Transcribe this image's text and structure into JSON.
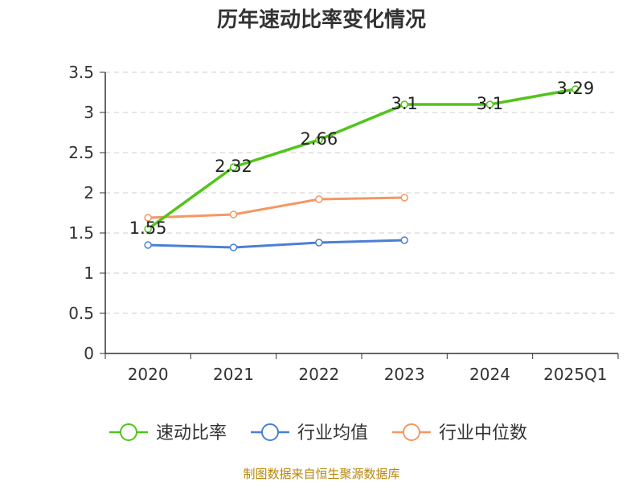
{
  "chart_data": {
    "type": "line",
    "title": "历年速动比率变化情况",
    "categories": [
      "2020",
      "2021",
      "2022",
      "2023",
      "2024",
      "2025Q1"
    ],
    "ylim": [
      0,
      3.5
    ],
    "yticks": [
      "0",
      "0.5",
      "1",
      "1.5",
      "2",
      "2.5",
      "3",
      "3.5"
    ],
    "grid": true,
    "legend_position": "bottom",
    "series": [
      {
        "name": "速动比率",
        "color": "#52c41a",
        "values": [
          1.55,
          2.32,
          2.66,
          3.1,
          3.1,
          3.29
        ],
        "labels": [
          "1.55",
          "2.32",
          "2.66",
          "3.1",
          "3.1",
          "3.29"
        ]
      },
      {
        "name": "行业均值",
        "color": "#4a7fd6",
        "values": [
          1.35,
          1.32,
          1.38,
          1.41,
          null,
          null
        ]
      },
      {
        "name": "行业中位数",
        "color": "#f59762",
        "values": [
          1.69,
          1.73,
          1.92,
          1.94,
          null,
          null
        ]
      }
    ],
    "source": "制图数据来自恒生聚源数据库"
  }
}
